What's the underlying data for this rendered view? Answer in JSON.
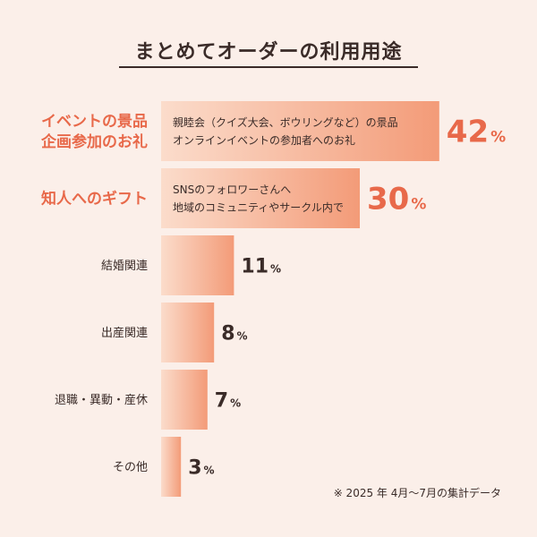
{
  "chart_data": {
    "type": "bar",
    "orientation": "horizontal",
    "title": "まとめてオーダーの利用用途",
    "categories": [
      {
        "label": [
          "イベントの景品",
          "企画参加のお礼"
        ],
        "value": 42,
        "highlight": true,
        "description": [
          "親睦会（クイズ大会、ボウリングなど）の景品",
          "オンラインイベントの参加者へのお礼"
        ]
      },
      {
        "label": [
          "知人へのギフト"
        ],
        "value": 30,
        "highlight": true,
        "description": [
          "SNSのフォロワーさんへ",
          "地域のコミュニティやサークル内で"
        ]
      },
      {
        "label": [
          "結婚関連"
        ],
        "value": 11,
        "highlight": false,
        "description": []
      },
      {
        "label": [
          "出産関連"
        ],
        "value": 8,
        "highlight": false,
        "description": []
      },
      {
        "label": [
          "退職・異動・産休"
        ],
        "value": 7,
        "highlight": false,
        "description": []
      },
      {
        "label": [
          "その他"
        ],
        "value": 3,
        "highlight": false,
        "description": []
      }
    ],
    "unit": "%",
    "colors": {
      "bar_light": "#fbd9c8",
      "bar_dark": "#f39b78",
      "highlight_text": "#e8694a",
      "text": "#3a2b28"
    }
  },
  "footnote": "※ 2025 年 4月〜7月の集計データ"
}
